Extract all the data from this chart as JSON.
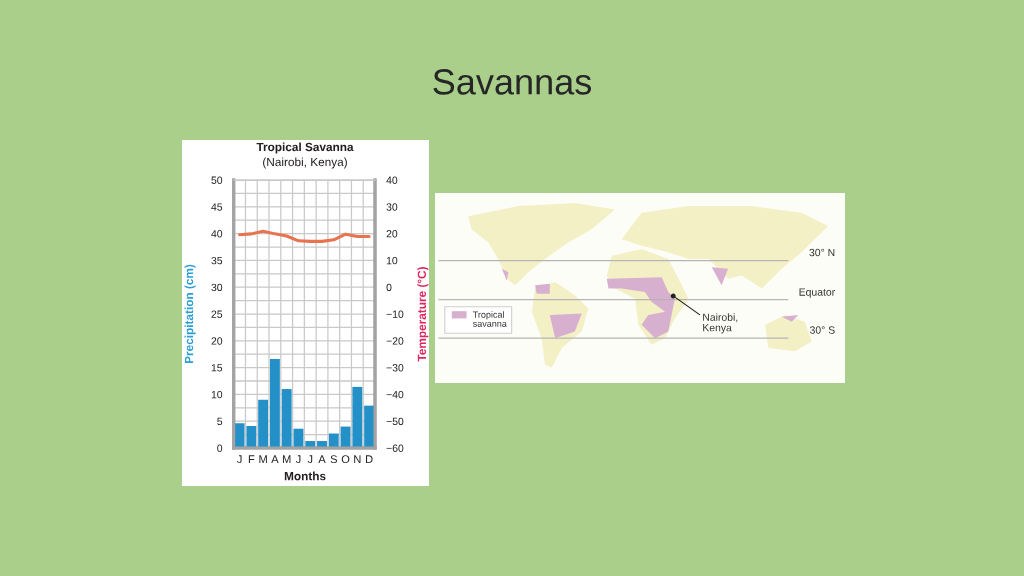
{
  "chart_data": [
    {
      "type": "bar",
      "title": "Tropical Savanna",
      "subtitle": "(Nairobi, Kenya)",
      "xlabel": "Months",
      "ylabel": "Precipitation (cm)",
      "y2label": "Temperature (°C)",
      "annotations": [
        "Savannas"
      ],
      "categories": [
        "J",
        "F",
        "M",
        "A",
        "M",
        "J",
        "J",
        "A",
        "S",
        "O",
        "N",
        "D"
      ],
      "series": [
        {
          "type": "bar",
          "color": "#2390c8",
          "values": [
            4.6,
            4.1,
            9.0,
            16.6,
            11.0,
            3.6,
            1.3,
            1.3,
            2.7,
            4.0,
            11.4,
            7.9
          ]
        },
        {
          "type": "line",
          "axis": "y2",
          "color": "#e8734f",
          "values": [
            19.6,
            19.9,
            20.9,
            19.9,
            19.1,
            17.3,
            17.1,
            17.1,
            17.7,
            19.8,
            18.9,
            18.9
          ]
        }
      ],
      "ylim": [
        0,
        50
      ],
      "yticks": [
        0,
        {
          "value": 2.5,
          "label": null
        },
        5,
        {
          "value": 7.5,
          "label": null
        },
        10,
        {
          "value": 12.5,
          "label": null
        },
        15,
        {
          "value": 17.5,
          "label": null
        },
        20,
        {
          "value": 22.5,
          "label": null
        },
        25,
        {
          "value": 27.5,
          "label": null
        },
        30,
        {
          "value": 32.5,
          "label": null
        },
        35,
        {
          "value": 37.5,
          "label": null
        },
        40,
        {
          "value": 42.5,
          "label": null
        },
        45,
        {
          "value": 47.5,
          "label": null
        },
        50
      ],
      "y2lim": [
        -60,
        40
      ],
      "y2ticks": [
        {
          "value": -60,
          "label": "−60"
        },
        {
          "value": -50,
          "label": "−50"
        },
        {
          "value": -40,
          "label": "−40"
        },
        {
          "value": -30,
          "label": "−30"
        },
        {
          "value": -20,
          "label": "−20"
        },
        {
          "value": -10,
          "label": "−10"
        },
        0,
        10,
        20,
        30,
        40
      ],
      "grid": true
    },
    {
      "type": "other",
      "annotations": [
        "30° N",
        "Equator",
        "30° S",
        "Tropical\nsavanna",
        "Nairobi,\nKenya"
      ]
    }
  ]
}
